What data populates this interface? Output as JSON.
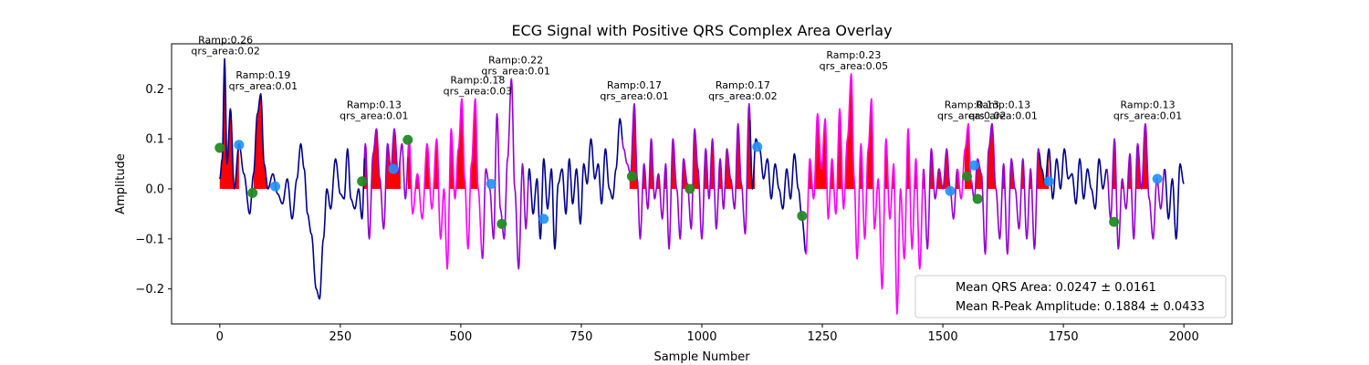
{
  "chart_data": {
    "type": "line",
    "title": "ECG Signal with Positive QRS Complex Area Overlay",
    "xlabel": "Sample Number",
    "ylabel": "Amplitude",
    "xlim": [
      -100,
      2100
    ],
    "ylim": [
      -0.27,
      0.29
    ],
    "x_ticks": [
      0,
      250,
      500,
      750,
      1000,
      1250,
      1500,
      1750,
      2000
    ],
    "y_ticks": [
      -0.2,
      -0.1,
      0.0,
      0.1,
      0.2
    ],
    "x_tick_labels": [
      "0",
      "250",
      "500",
      "750",
      "1000",
      "1250",
      "1500",
      "1750",
      "2000"
    ],
    "y_tick_labels": [
      "−0.2",
      "−0.1",
      "0.0",
      "0.1",
      "0.2"
    ],
    "grid": false,
    "legend_position": "lower-right",
    "legend": [
      "Mean QRS Area: 0.0247 ± 0.0161",
      "Mean R-Peak Amplitude: 0.1884 ± 0.0433"
    ],
    "colors": {
      "baseline": "#00008b",
      "heartbeat": "#9400d3",
      "heartbeat_alt": "#ff00ff",
      "qrs_fill": "#ff0000",
      "q_marker": "#1e90ff",
      "s_marker": "#228b22"
    },
    "signal_keypoints": [
      [
        0,
        0.02
      ],
      [
        5,
        0.06
      ],
      [
        10,
        0.26
      ],
      [
        15,
        0.05
      ],
      [
        22,
        0.16
      ],
      [
        30,
        0.0
      ],
      [
        40,
        0.09
      ],
      [
        50,
        0.03
      ],
      [
        62,
        -0.05
      ],
      [
        70,
        0.03
      ],
      [
        78,
        0.15
      ],
      [
        85,
        0.19
      ],
      [
        92,
        0.05
      ],
      [
        100,
        0.0
      ],
      [
        110,
        0.03
      ],
      [
        120,
        -0.01
      ],
      [
        130,
        -0.03
      ],
      [
        140,
        0.02
      ],
      [
        150,
        -0.06
      ],
      [
        160,
        0.02
      ],
      [
        168,
        0.09
      ],
      [
        175,
        0.04
      ],
      [
        182,
        -0.05
      ],
      [
        190,
        -0.09
      ],
      [
        200,
        -0.2
      ],
      [
        207,
        -0.22
      ],
      [
        215,
        -0.1
      ],
      [
        222,
        0.0
      ],
      [
        230,
        -0.04
      ],
      [
        240,
        0.06
      ],
      [
        250,
        -0.01
      ],
      [
        258,
        -0.02
      ],
      [
        265,
        0.08
      ],
      [
        272,
        -0.02
      ],
      [
        280,
        -0.04
      ],
      [
        288,
        0.0
      ],
      [
        295,
        -0.06
      ],
      [
        302,
        0.09
      ],
      [
        310,
        -0.1
      ],
      [
        318,
        0.07
      ],
      [
        325,
        0.12
      ],
      [
        332,
        0.02
      ],
      [
        340,
        -0.08
      ],
      [
        348,
        0.09
      ],
      [
        355,
        0.04
      ],
      [
        362,
        0.12
      ],
      [
        370,
        0.03
      ],
      [
        378,
        0.09
      ],
      [
        385,
        -0.02
      ],
      [
        393,
        0.1
      ],
      [
        400,
        -0.05
      ],
      [
        410,
        0.03
      ],
      [
        420,
        -0.06
      ],
      [
        430,
        0.09
      ],
      [
        440,
        -0.04
      ],
      [
        450,
        0.1
      ],
      [
        458,
        -0.1
      ],
      [
        465,
        0.0
      ],
      [
        472,
        -0.16
      ],
      [
        480,
        0.12
      ],
      [
        488,
        -0.02
      ],
      [
        495,
        0.08
      ],
      [
        502,
        0.18
      ],
      [
        508,
        0.02
      ],
      [
        515,
        -0.12
      ],
      [
        522,
        0.05
      ],
      [
        530,
        0.18
      ],
      [
        536,
        0.0
      ],
      [
        545,
        -0.14
      ],
      [
        552,
        0.04
      ],
      [
        560,
        0.0
      ],
      [
        568,
        -0.1
      ],
      [
        575,
        0.15
      ],
      [
        582,
        -0.04
      ],
      [
        590,
        -0.1
      ],
      [
        597,
        0.06
      ],
      [
        605,
        0.22
      ],
      [
        612,
        0.0
      ],
      [
        620,
        -0.16
      ],
      [
        628,
        0.05
      ],
      [
        635,
        -0.08
      ],
      [
        642,
        0.04
      ],
      [
        650,
        -0.05
      ],
      [
        658,
        0.02
      ],
      [
        665,
        -0.1
      ],
      [
        672,
        0.06
      ],
      [
        680,
        -0.04
      ],
      [
        688,
        0.04
      ],
      [
        695,
        -0.12
      ],
      [
        702,
        0.01
      ],
      [
        710,
        0.04
      ],
      [
        718,
        -0.05
      ],
      [
        725,
        0.06
      ],
      [
        732,
        -0.03
      ],
      [
        740,
        0.04
      ],
      [
        748,
        -0.07
      ],
      [
        755,
        0.05
      ],
      [
        762,
        0.01
      ],
      [
        770,
        0.1
      ],
      [
        778,
        0.02
      ],
      [
        785,
        0.05
      ],
      [
        792,
        -0.03
      ],
      [
        800,
        0.08
      ],
      [
        808,
        0.0
      ],
      [
        815,
        -0.02
      ],
      [
        822,
        0.04
      ],
      [
        830,
        0.14
      ],
      [
        838,
        0.08
      ],
      [
        845,
        0.05
      ],
      [
        852,
        0.03
      ],
      [
        860,
        0.17
      ],
      [
        866,
        0.02
      ],
      [
        872,
        -0.1
      ],
      [
        880,
        0.05
      ],
      [
        888,
        -0.04
      ],
      [
        895,
        0.1
      ],
      [
        902,
        -0.02
      ],
      [
        910,
        0.03
      ],
      [
        918,
        -0.06
      ],
      [
        925,
        0.05
      ],
      [
        932,
        -0.12
      ],
      [
        940,
        0.1
      ],
      [
        948,
        0.0
      ],
      [
        955,
        -0.1
      ],
      [
        962,
        0.06
      ],
      [
        970,
        0.01
      ],
      [
        978,
        -0.08
      ],
      [
        985,
        0.12
      ],
      [
        992,
        0.04
      ],
      [
        1000,
        -0.1
      ],
      [
        1008,
        0.08
      ],
      [
        1015,
        -0.02
      ],
      [
        1022,
        0.1
      ],
      [
        1030,
        -0.08
      ],
      [
        1038,
        0.06
      ],
      [
        1045,
        -0.04
      ],
      [
        1052,
        0.08
      ],
      [
        1060,
        0.02
      ],
      [
        1068,
        -0.04
      ],
      [
        1075,
        0.13
      ],
      [
        1082,
        0.01
      ],
      [
        1090,
        -0.09
      ],
      [
        1098,
        0.17
      ],
      [
        1105,
        0.0
      ],
      [
        1112,
        0.1
      ],
      [
        1120,
        0.08
      ],
      [
        1128,
        0.02
      ],
      [
        1136,
        0.06
      ],
      [
        1144,
        -0.02
      ],
      [
        1152,
        0.05
      ],
      [
        1160,
        0.0
      ],
      [
        1168,
        -0.04
      ],
      [
        1176,
        0.04
      ],
      [
        1184,
        -0.02
      ],
      [
        1192,
        0.07
      ],
      [
        1200,
        0.0
      ],
      [
        1208,
        -0.06
      ],
      [
        1216,
        -0.13
      ],
      [
        1224,
        0.06
      ],
      [
        1232,
        -0.02
      ],
      [
        1240,
        0.15
      ],
      [
        1248,
        0.04
      ],
      [
        1256,
        0.14
      ],
      [
        1262,
        -0.06
      ],
      [
        1270,
        0.06
      ],
      [
        1278,
        -0.05
      ],
      [
        1286,
        0.16
      ],
      [
        1294,
        -0.04
      ],
      [
        1302,
        0.1
      ],
      [
        1310,
        0.23
      ],
      [
        1316,
        0.02
      ],
      [
        1322,
        -0.14
      ],
      [
        1330,
        0.09
      ],
      [
        1338,
        -0.1
      ],
      [
        1345,
        0.08
      ],
      [
        1352,
        0.18
      ],
      [
        1358,
        -0.08
      ],
      [
        1366,
        0.02
      ],
      [
        1374,
        -0.2
      ],
      [
        1382,
        0.1
      ],
      [
        1390,
        -0.06
      ],
      [
        1398,
        0.05
      ],
      [
        1405,
        -0.25
      ],
      [
        1412,
        0.0
      ],
      [
        1420,
        -0.14
      ],
      [
        1428,
        0.12
      ],
      [
        1436,
        -0.12
      ],
      [
        1444,
        0.06
      ],
      [
        1452,
        -0.16
      ],
      [
        1460,
        0.04
      ],
      [
        1468,
        -0.12
      ],
      [
        1476,
        0.08
      ],
      [
        1484,
        -0.02
      ],
      [
        1492,
        0.04
      ],
      [
        1500,
        0.0
      ],
      [
        1508,
        0.08
      ],
      [
        1515,
        0.0
      ],
      [
        1522,
        -0.06
      ],
      [
        1530,
        0.04
      ],
      [
        1538,
        -0.02
      ],
      [
        1546,
        0.08
      ],
      [
        1553,
        0.13
      ],
      [
        1558,
        0.02
      ],
      [
        1565,
        -0.02
      ],
      [
        1572,
        0.06
      ],
      [
        1580,
        0.03
      ],
      [
        1588,
        -0.13
      ],
      [
        1595,
        0.08
      ],
      [
        1602,
        0.13
      ],
      [
        1610,
        0.0
      ],
      [
        1618,
        -0.1
      ],
      [
        1626,
        0.05
      ],
      [
        1634,
        -0.13
      ],
      [
        1642,
        0.06
      ],
      [
        1650,
        0.0
      ],
      [
        1658,
        -0.08
      ],
      [
        1666,
        0.06
      ],
      [
        1674,
        -0.1
      ],
      [
        1682,
        0.04
      ],
      [
        1690,
        -0.12
      ],
      [
        1698,
        0.08
      ],
      [
        1705,
        0.04
      ],
      [
        1712,
        0.01
      ],
      [
        1720,
        0.08
      ],
      [
        1728,
        -0.02
      ],
      [
        1736,
        0.06
      ],
      [
        1744,
        0.0
      ],
      [
        1752,
        0.08
      ],
      [
        1760,
        0.02
      ],
      [
        1768,
        0.03
      ],
      [
        1776,
        -0.03
      ],
      [
        1784,
        0.06
      ],
      [
        1792,
        -0.02
      ],
      [
        1800,
        0.04
      ],
      [
        1808,
        0.0
      ],
      [
        1816,
        -0.04
      ],
      [
        1824,
        0.06
      ],
      [
        1832,
        0.0
      ],
      [
        1840,
        0.04
      ],
      [
        1848,
        -0.06
      ],
      [
        1856,
        0.1
      ],
      [
        1864,
        -0.12
      ],
      [
        1872,
        0.02
      ],
      [
        1880,
        -0.04
      ],
      [
        1888,
        0.07
      ],
      [
        1896,
        -0.1
      ],
      [
        1904,
        0.09
      ],
      [
        1912,
        0.0
      ],
      [
        1920,
        0.13
      ],
      [
        1928,
        -0.02
      ],
      [
        1936,
        -0.1
      ],
      [
        1944,
        0.02
      ],
      [
        1952,
        -0.04
      ],
      [
        1960,
        0.04
      ],
      [
        1968,
        -0.06
      ],
      [
        1976,
        0.02
      ],
      [
        1984,
        -0.1
      ],
      [
        1992,
        0.05
      ],
      [
        2000,
        0.01
      ]
    ],
    "segments": [
      {
        "color": "baseline",
        "from": 0,
        "to": 300
      },
      {
        "color": "heartbeat",
        "from": 300,
        "to": 390
      },
      {
        "color": "heartbeat_alt",
        "from": 390,
        "to": 545
      },
      {
        "color": "heartbeat",
        "from": 545,
        "to": 640
      },
      {
        "color": "baseline",
        "from": 640,
        "to": 835
      },
      {
        "color": "heartbeat",
        "from": 835,
        "to": 1100
      },
      {
        "color": "baseline",
        "from": 1100,
        "to": 1215
      },
      {
        "color": "heartbeat_alt",
        "from": 1215,
        "to": 1460
      },
      {
        "color": "heartbeat",
        "from": 1460,
        "to": 1530
      },
      {
        "color": "heartbeat_alt",
        "from": 1530,
        "to": 1560
      },
      {
        "color": "heartbeat",
        "from": 1560,
        "to": 1700
      },
      {
        "color": "baseline",
        "from": 1700,
        "to": 1840
      },
      {
        "color": "heartbeat",
        "from": 1840,
        "to": 1960
      },
      {
        "color": "baseline",
        "from": 1960,
        "to": 2000
      }
    ],
    "qrs_fill_regions": [
      [
        0,
        40
      ],
      [
        70,
        100
      ],
      [
        290,
        375
      ],
      [
        390,
        540
      ],
      [
        850,
        1110
      ],
      [
        1205,
        1535
      ],
      [
        1545,
        1720
      ],
      [
        1850,
        1940
      ]
    ],
    "q_points": [
      [
        40,
        0.088
      ],
      [
        115,
        0.005
      ],
      [
        360,
        0.04
      ],
      [
        563,
        0.01
      ],
      [
        672,
        -0.06
      ],
      [
        1115,
        0.084
      ],
      [
        1515,
        -0.004
      ],
      [
        1565,
        0.047
      ],
      [
        1720,
        0.015
      ],
      [
        1945,
        0.02
      ]
    ],
    "s_points": [
      [
        0,
        0.082
      ],
      [
        68,
        -0.008
      ],
      [
        295,
        0.015
      ],
      [
        390,
        0.098
      ],
      [
        585,
        -0.07
      ],
      [
        855,
        0.025
      ],
      [
        975,
        0.0
      ],
      [
        1208,
        -0.054
      ],
      [
        1550,
        0.025
      ],
      [
        1572,
        -0.02
      ],
      [
        1855,
        -0.066
      ]
    ],
    "annotations": [
      {
        "x": 12,
        "y": 0.26,
        "ramp": "Ramp:0.26",
        "area": "qrs_area:0.02"
      },
      {
        "x": 90,
        "y": 0.19,
        "ramp": "Ramp:0.19",
        "area": "qrs_area:0.01"
      },
      {
        "x": 320,
        "y": 0.13,
        "ramp": "Ramp:0.13",
        "area": "qrs_area:0.01"
      },
      {
        "x": 535,
        "y": 0.18,
        "ramp": "Ramp:0.18",
        "area": "qrs_area:0.03"
      },
      {
        "x": 614,
        "y": 0.22,
        "ramp": "Ramp:0.22",
        "area": "qrs_area:0.01"
      },
      {
        "x": 860,
        "y": 0.17,
        "ramp": "Ramp:0.17",
        "area": "qrs_area:0.01"
      },
      {
        "x": 1085,
        "y": 0.17,
        "ramp": "Ramp:0.17",
        "area": "qrs_area:0.02"
      },
      {
        "x": 1315,
        "y": 0.23,
        "ramp": "Ramp:0.23",
        "area": "qrs_area:0.05"
      },
      {
        "x": 1560,
        "y": 0.13,
        "ramp": "Ramp:0.13",
        "area": "qrs_area:0.02"
      },
      {
        "x": 1625,
        "y": 0.13,
        "ramp": "Ramp:0.13",
        "area": "qrs_area:0.01"
      },
      {
        "x": 1925,
        "y": 0.13,
        "ramp": "Ramp:0.13",
        "area": "qrs_area:0.01"
      }
    ]
  }
}
